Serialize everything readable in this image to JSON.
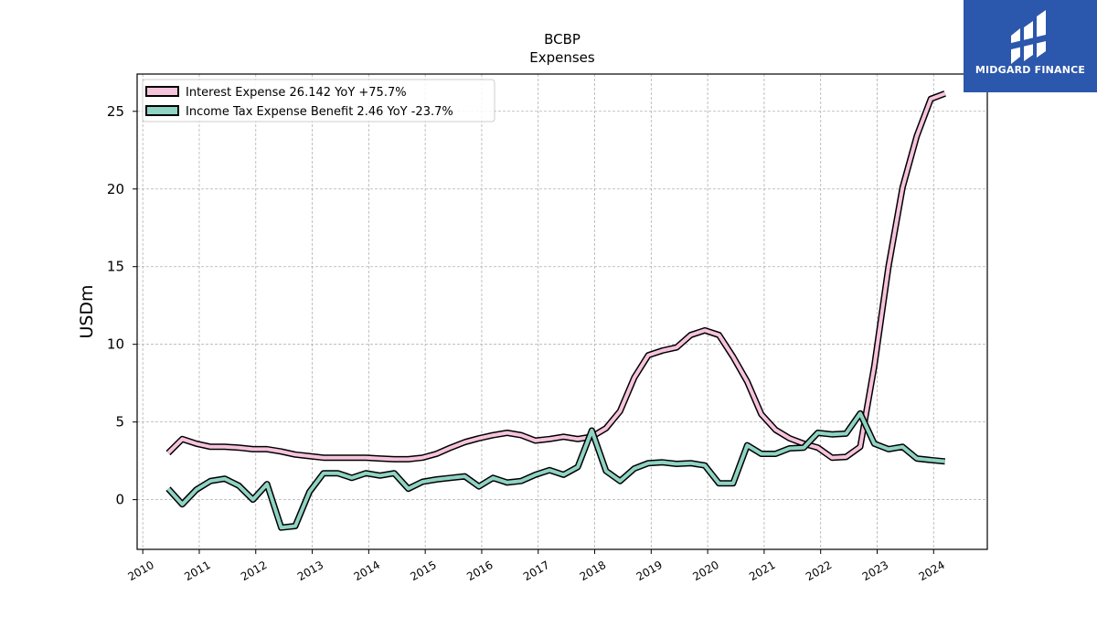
{
  "brand": {
    "name": "MIDGARD FINANCE",
    "color": "#2b57ac"
  },
  "chart_data": {
    "type": "line",
    "title": "BCBP",
    "subtitle": "Expenses",
    "xlabel": "",
    "ylabel": "USDm",
    "xlim": [
      2009.9,
      2024.95
    ],
    "ylim": [
      -3.2,
      27.4
    ],
    "xticks": [
      "2010",
      "2011",
      "2012",
      "2013",
      "2014",
      "2015",
      "2016",
      "2017",
      "2018",
      "2019",
      "2020",
      "2021",
      "2022",
      "2023",
      "2024"
    ],
    "yticks": [
      0,
      5,
      10,
      15,
      20,
      25
    ],
    "grid": true,
    "legend_position": "top-left",
    "series": [
      {
        "name": "Interest Expense  26.142 YoY +75.7%",
        "color": "#f7c3dc",
        "x": [
          2010.45,
          2010.7,
          2010.95,
          2011.2,
          2011.45,
          2011.7,
          2011.95,
          2012.2,
          2012.45,
          2012.7,
          2012.95,
          2013.2,
          2013.45,
          2013.7,
          2013.95,
          2014.2,
          2014.45,
          2014.7,
          2014.95,
          2015.2,
          2015.45,
          2015.7,
          2015.95,
          2016.2,
          2016.45,
          2016.7,
          2016.95,
          2017.2,
          2017.45,
          2017.7,
          2017.95,
          2018.2,
          2018.45,
          2018.7,
          2018.95,
          2019.2,
          2019.45,
          2019.7,
          2019.95,
          2020.2,
          2020.45,
          2020.7,
          2020.95,
          2021.2,
          2021.45,
          2021.7,
          2021.95,
          2022.2,
          2022.45,
          2022.7,
          2022.95,
          2023.2,
          2023.45,
          2023.7,
          2023.95,
          2024.2
        ],
        "y": [
          3.0,
          3.9,
          3.6,
          3.4,
          3.4,
          3.35,
          3.25,
          3.25,
          3.1,
          2.9,
          2.8,
          2.7,
          2.7,
          2.7,
          2.7,
          2.65,
          2.6,
          2.6,
          2.7,
          2.95,
          3.35,
          3.7,
          3.95,
          4.15,
          4.3,
          4.15,
          3.8,
          3.9,
          4.05,
          3.9,
          4.05,
          4.6,
          5.7,
          7.85,
          9.3,
          9.6,
          9.8,
          10.6,
          10.9,
          10.6,
          9.2,
          7.6,
          5.5,
          4.5,
          3.95,
          3.6,
          3.35,
          2.7,
          2.75,
          3.4,
          8.6,
          15.0,
          20.1,
          23.4,
          25.8,
          26.14
        ]
      },
      {
        "name": "Income Tax Expense Benefit  2.46 YoY -23.7%",
        "color": "#8fd3c3",
        "x": [
          2010.45,
          2010.7,
          2010.95,
          2011.2,
          2011.45,
          2011.7,
          2011.95,
          2012.2,
          2012.45,
          2012.7,
          2012.95,
          2013.2,
          2013.45,
          2013.7,
          2013.95,
          2014.2,
          2014.45,
          2014.7,
          2014.95,
          2015.2,
          2015.45,
          2015.7,
          2015.95,
          2016.2,
          2016.45,
          2016.7,
          2016.95,
          2017.2,
          2017.45,
          2017.7,
          2017.95,
          2018.2,
          2018.45,
          2018.7,
          2018.95,
          2019.2,
          2019.45,
          2019.7,
          2019.95,
          2020.2,
          2020.45,
          2020.7,
          2020.95,
          2021.2,
          2021.45,
          2021.7,
          2021.95,
          2022.2,
          2022.45,
          2022.7,
          2022.95,
          2023.2,
          2023.45,
          2023.7,
          2023.95,
          2024.2
        ],
        "y": [
          0.7,
          -0.3,
          0.65,
          1.2,
          1.35,
          0.9,
          0.0,
          1.0,
          -1.8,
          -1.7,
          0.5,
          1.7,
          1.7,
          1.4,
          1.7,
          1.55,
          1.7,
          0.7,
          1.15,
          1.3,
          1.4,
          1.5,
          0.85,
          1.4,
          1.1,
          1.2,
          1.6,
          1.9,
          1.6,
          2.1,
          4.45,
          1.85,
          1.2,
          2.0,
          2.35,
          2.4,
          2.3,
          2.35,
          2.2,
          1.05,
          1.05,
          3.5,
          2.95,
          2.95,
          3.3,
          3.35,
          4.3,
          4.2,
          4.25,
          5.55,
          3.6,
          3.25,
          3.4,
          2.65,
          2.55,
          2.46
        ]
      }
    ]
  }
}
